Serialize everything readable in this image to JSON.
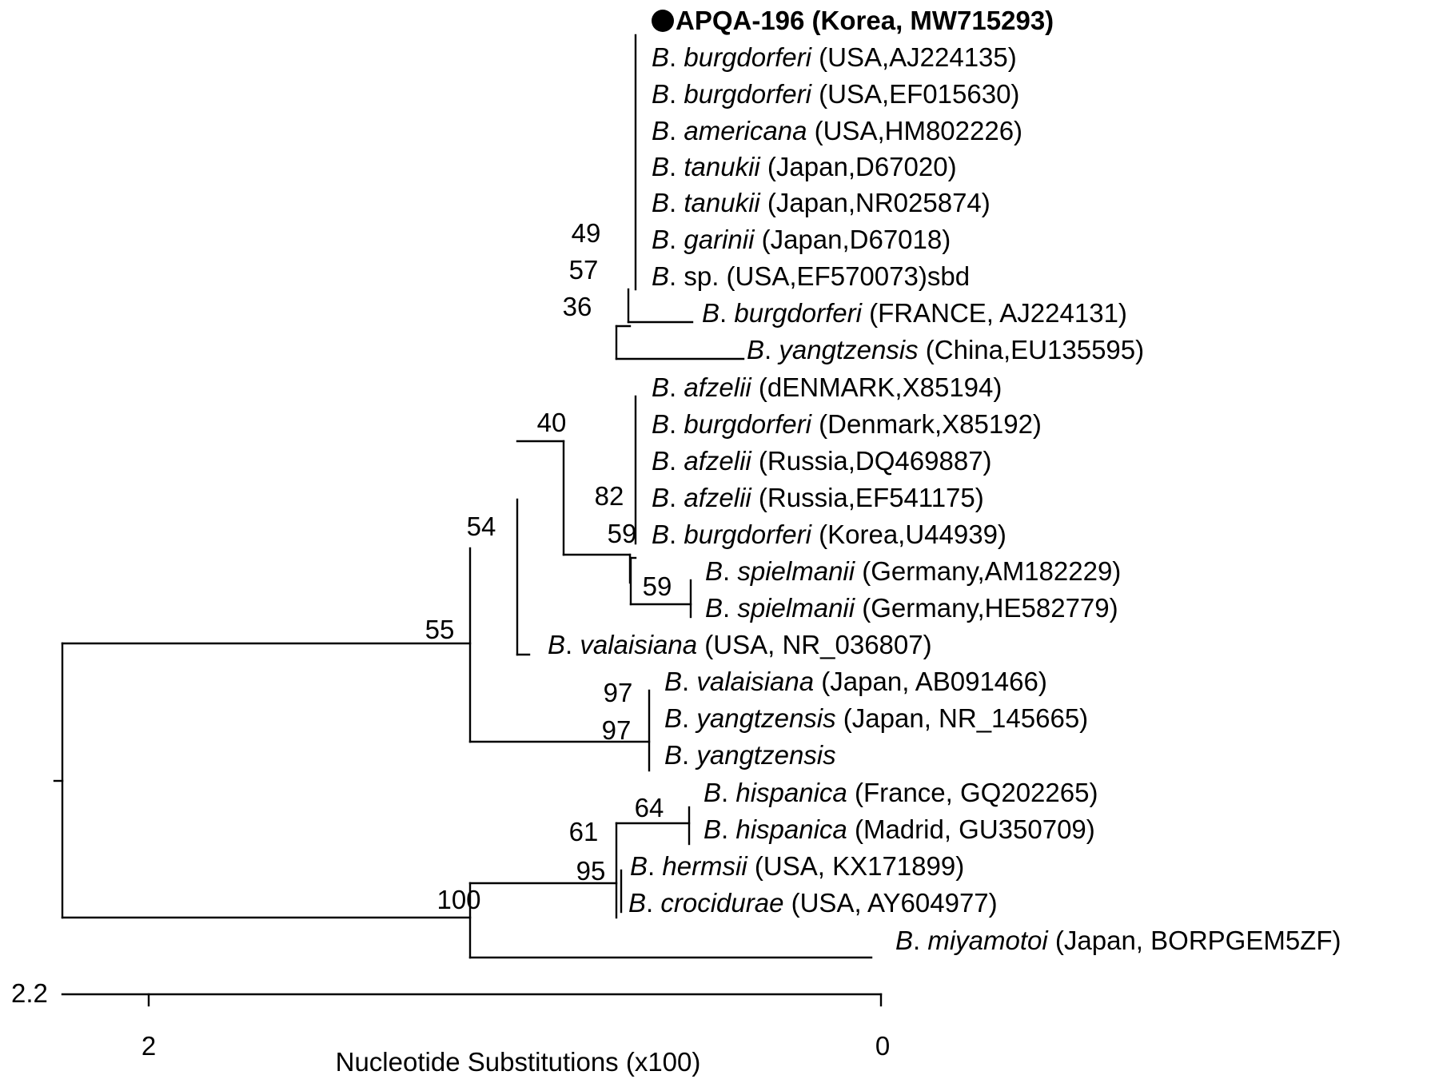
{
  "leaves": [
    {
      "id": "L1",
      "marker": "filled-circle",
      "bold": true,
      "genus": "",
      "species": "",
      "rest": "APQA-196 (Korea, MW715293)"
    },
    {
      "id": "L2",
      "genus": "B",
      "species": "burgdorferi",
      "rest": " (USA,AJ224135)"
    },
    {
      "id": "L3",
      "genus": "B",
      "species": "burgdorferi",
      "rest": " (USA,EF015630)"
    },
    {
      "id": "L4",
      "genus": "B",
      "species": "americana",
      "rest": " (USA,HM802226)"
    },
    {
      "id": "L5",
      "genus": "B",
      "species": "tanukii",
      "rest": " (Japan,D67020)"
    },
    {
      "id": "L6",
      "genus": "B",
      "species": "tanukii",
      "rest": " (Japan,NR025874)"
    },
    {
      "id": "L7",
      "genus": "B",
      "species": "garinii",
      "rest": " (Japan,D67018)"
    },
    {
      "id": "L8",
      "genus": "B",
      "species": "",
      "rest": "sp. (USA,EF570073)sbd"
    },
    {
      "id": "L9",
      "genus": "B",
      "species": "burgdorferi",
      "rest": " (FRANCE, AJ224131)"
    },
    {
      "id": "L10",
      "genus": "B",
      "species": "yangtzensis",
      "rest": " (China,EU135595)"
    },
    {
      "id": "L11",
      "genus": "B",
      "species": "afzelii",
      "rest": " (dENMARK,X85194)"
    },
    {
      "id": "L12",
      "genus": "B",
      "species": "burgdorferi",
      "rest": " (Denmark,X85192)"
    },
    {
      "id": "L13",
      "genus": "B",
      "species": "afzelii",
      "rest": " (Russia,DQ469887)"
    },
    {
      "id": "L14",
      "genus": "B",
      "species": "afzelii",
      "rest": " (Russia,EF541175)"
    },
    {
      "id": "L15",
      "genus": "B",
      "species": "burgdorferi",
      "rest": " (Korea,U44939)"
    },
    {
      "id": "L16",
      "genus": "B",
      "species": "spielmanii",
      "rest": " (Germany,AM182229)"
    },
    {
      "id": "L17",
      "genus": "B",
      "species": "spielmanii",
      "rest": " (Germany,HE582779)"
    },
    {
      "id": "L18",
      "genus": "B",
      "species": "valaisiana",
      "rest": " (USA, NR_036807)"
    },
    {
      "id": "L19",
      "genus": "B",
      "species": "valaisiana",
      "rest": " (Japan, AB091466)"
    },
    {
      "id": "L20",
      "genus": "B",
      "species": "yangtzensis",
      "rest": " (Japan, NR_145665)"
    },
    {
      "id": "L21",
      "genus": "B",
      "species": "yangtzensis",
      "rest": ""
    },
    {
      "id": "L22",
      "genus": "B",
      "species": "hispanica",
      "rest": " (France, GQ202265)"
    },
    {
      "id": "L23",
      "genus": "B",
      "species": "hispanica",
      "rest": " (Madrid, GU350709)"
    },
    {
      "id": "L24",
      "genus": "B",
      "species": "hermsii",
      "rest": " (USA, KX171899)"
    },
    {
      "id": "L25",
      "genus": "B",
      "species": "crocidurae",
      "rest": " (USA, AY604977)"
    },
    {
      "id": "L26",
      "genus": "B",
      "species": "miyamotoi",
      "rest": " (Japan, BORPGEM5ZF)"
    }
  ],
  "bootstrap_values": [
    "49",
    "57",
    "36",
    "40",
    "82",
    "59",
    "59",
    "54",
    "55",
    "97",
    "97",
    "64",
    "61",
    "95",
    "100"
  ],
  "scale_bar": {
    "left_value": "2.2",
    "tick_labels": [
      "2",
      "0"
    ],
    "title": "Nucleotide Substitutions (x100)"
  }
}
